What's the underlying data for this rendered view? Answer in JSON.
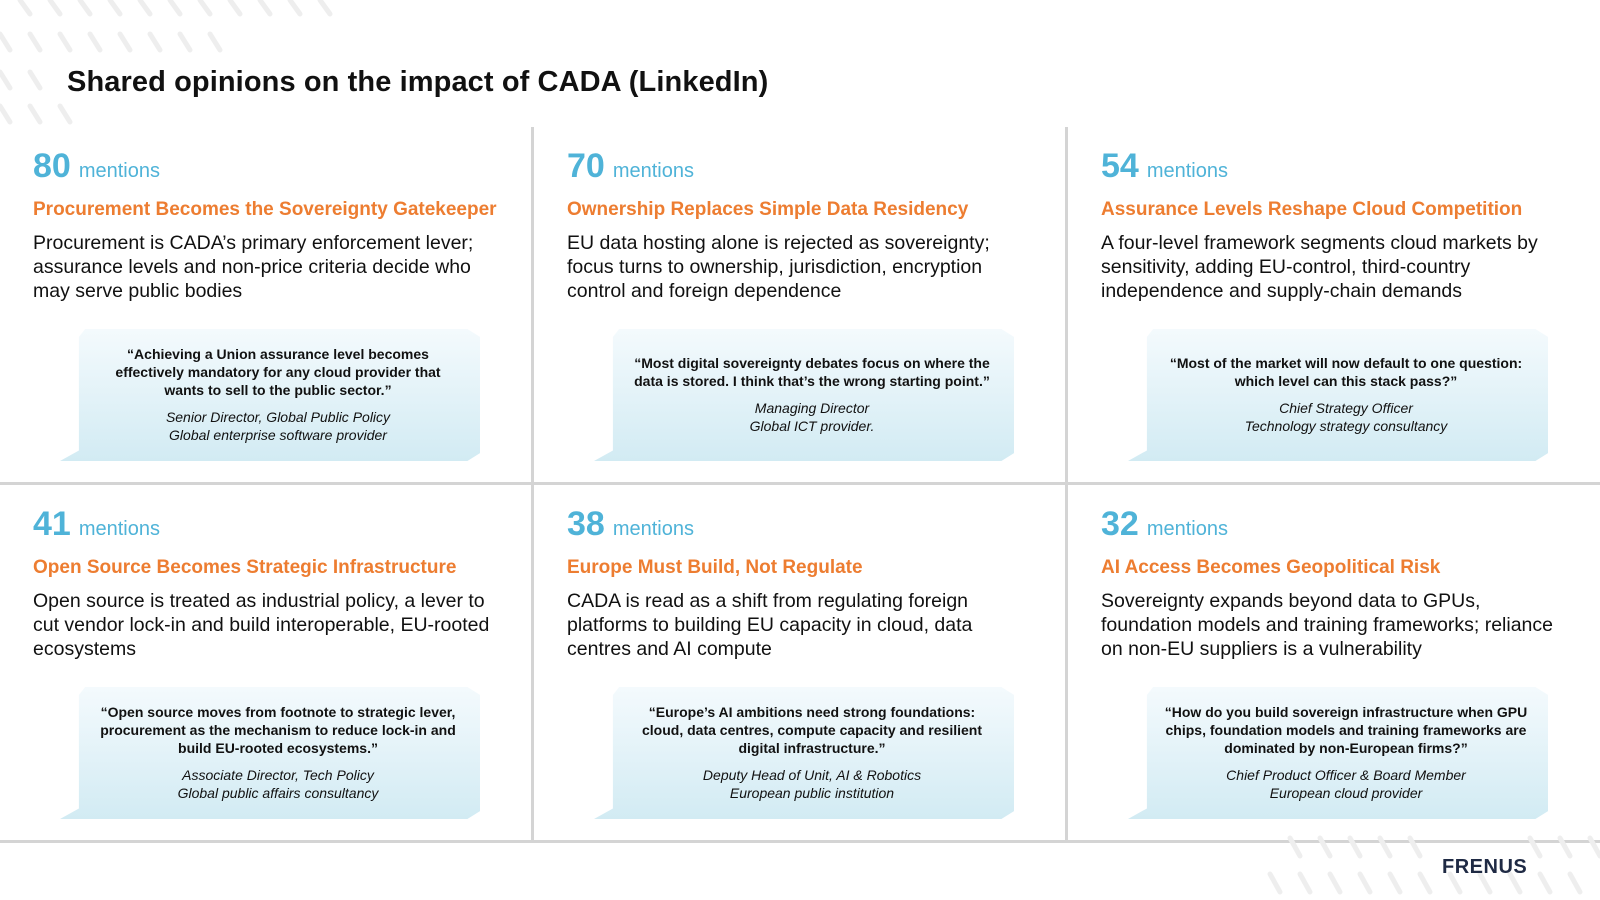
{
  "slide": {
    "title": "Shared opinions on the impact of CADA (LinkedIn)",
    "logo": "FRENUS",
    "accent_color": "#4fb3d8",
    "headline_color": "#ed7d31"
  },
  "cards": [
    {
      "count": "80",
      "unit": "mentions",
      "headline": "Procurement Becomes the Sovereignty Gatekeeper",
      "body": "Procurement is CADA’s primary enforcement lever; assurance levels and non-price criteria decide who may serve public bodies",
      "quote": "“Achieving a Union assurance level becomes effectively mandatory for any cloud provider that wants to sell to the public sector.”",
      "role": "Senior Director, Global Public Policy",
      "org": "Global enterprise software provider"
    },
    {
      "count": "70",
      "unit": "mentions",
      "headline": "Ownership Replaces Simple Data Residency",
      "body": "EU data hosting alone is rejected as sovereignty; focus turns to ownership, jurisdiction, encryption control and foreign dependence",
      "quote": "“Most digital sovereignty debates focus on where the data is stored. I think that’s the wrong starting point.”",
      "role": "Managing Director",
      "org": "Global ICT provider."
    },
    {
      "count": "54",
      "unit": "mentions",
      "headline": "Assurance Levels Reshape Cloud Competition",
      "body": "A four-level framework segments cloud markets by sensitivity, adding EU-control, third-country independence and supply-chain demands",
      "quote": "“Most of the market will now default to one question: which level can this stack pass?”",
      "role": "Chief Strategy Officer",
      "org": "Technology strategy consultancy"
    },
    {
      "count": "41",
      "unit": "mentions",
      "headline": "Open Source Becomes Strategic Infrastructure",
      "body": "Open source is treated as industrial policy, a lever to cut vendor lock-in and build interoperable, EU-rooted ecosystems",
      "quote": "“Open source moves from footnote to strategic lever, procurement as the mechanism to reduce lock-in and build EU-rooted ecosystems.”",
      "role": "Associate Director, Tech Policy",
      "org": "Global public affairs consultancy"
    },
    {
      "count": "38",
      "unit": "mentions",
      "headline": "Europe Must Build, Not Regulate",
      "body": "CADA is read as a shift from regulating foreign platforms to building EU capacity in cloud, data centres and AI compute",
      "quote": "“Europe’s AI ambitions need strong foundations: cloud, data centres, compute capacity and resilient digital infrastructure.”",
      "role": "Deputy Head of Unit, AI & Robotics",
      "org": "European public institution"
    },
    {
      "count": "32",
      "unit": "mentions",
      "headline": "AI Access Becomes Geopolitical Risk",
      "body": "Sovereignty expands beyond data to GPUs, foundation models and training frameworks; reliance on non-EU suppliers is a vulnerability",
      "quote": "“How do you build sovereign infrastructure when GPU chips, foundation models and training frameworks are dominated by non-European firms?”",
      "role": "Chief Product Officer & Board Member",
      "org": "European cloud provider"
    }
  ]
}
